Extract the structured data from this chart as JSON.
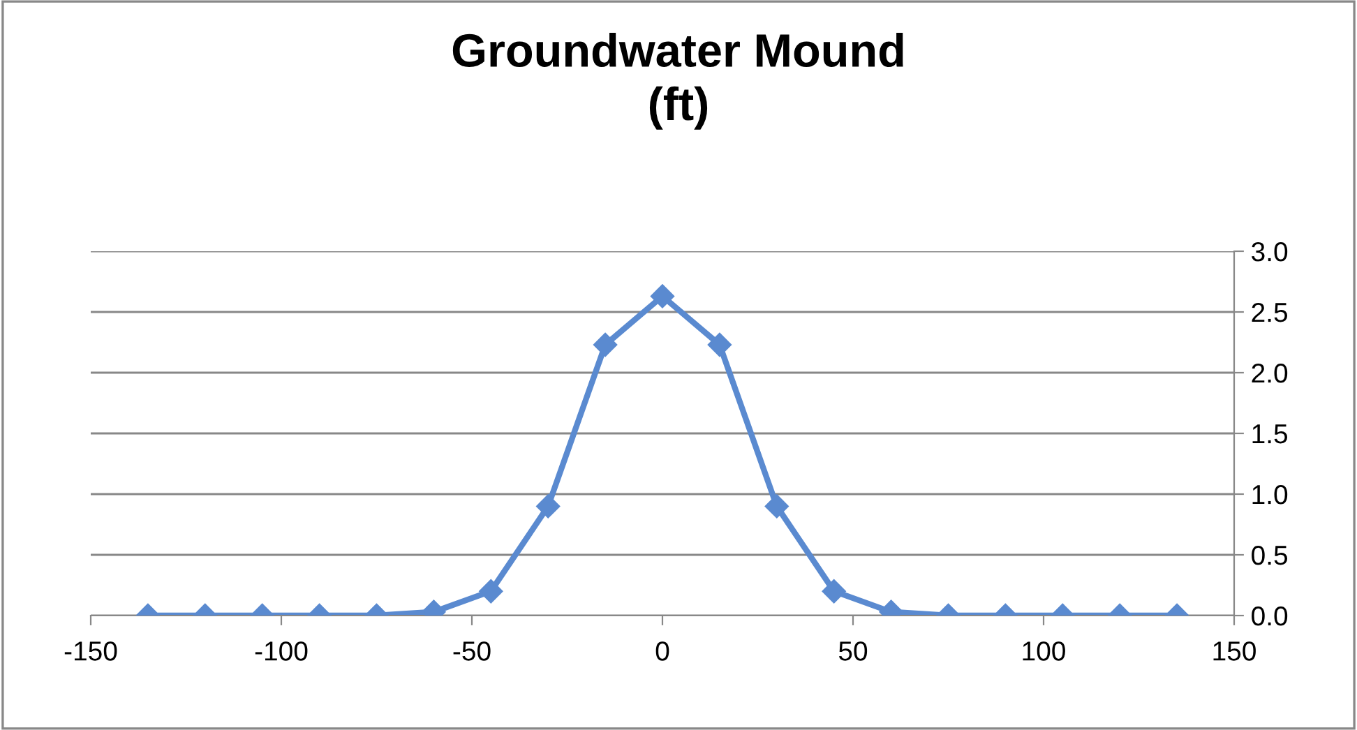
{
  "chart_data": {
    "type": "line",
    "title": "Groundwater Mound\n(ft)",
    "x": [
      -135,
      -120,
      -105,
      -90,
      -75,
      -60,
      -45,
      -30,
      -15,
      0,
      15,
      30,
      45,
      60,
      75,
      90,
      105,
      120,
      135
    ],
    "series": [
      {
        "color": "#5a8ad0",
        "values": [
          0,
          0,
          0,
          0,
          0,
          0.03,
          0.2,
          0.9,
          2.23,
          2.63,
          2.23,
          0.9,
          0.2,
          0.03,
          0,
          0,
          0,
          0,
          0
        ]
      }
    ],
    "xlim": [
      -150,
      150
    ],
    "xticks": [
      -150,
      -100,
      -50,
      0,
      50,
      100,
      150
    ],
    "ylim": [
      0,
      3
    ],
    "yticks": [
      {
        "value": 0,
        "label": "0.0"
      },
      {
        "value": 0.5,
        "label": "0.5"
      },
      {
        "value": 1,
        "label": "1.0"
      },
      {
        "value": 1.5,
        "label": "1.5"
      },
      {
        "value": 2,
        "label": "2.0"
      },
      {
        "value": 2.5,
        "label": "2.5"
      },
      {
        "value": 3,
        "label": "3.0"
      }
    ],
    "grid": "y",
    "marker": "diamond",
    "line_style": "solid",
    "legend": false
  }
}
